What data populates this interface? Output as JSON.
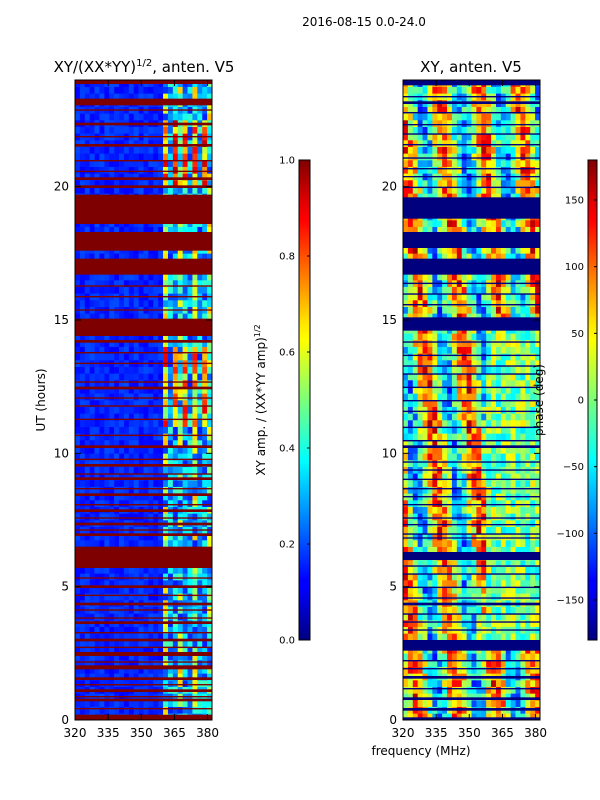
{
  "figure": {
    "title": "2016-08-15 0.0-24.0",
    "shared_xlabel": "frequency (MHz)"
  },
  "chart_data": [
    {
      "type": "heatmap",
      "title": "XY/(XX*YY)",
      "title_exponent": "1/2",
      "title_suffix": ", anten. V5",
      "xlabel": "",
      "ylabel": "UT (hours)",
      "xlim": [
        320,
        382
      ],
      "ylim": [
        0,
        24
      ],
      "xticks": [
        320,
        335,
        350,
        365,
        380
      ],
      "yticks": [
        0,
        5,
        10,
        15,
        20
      ],
      "colorbar": {
        "label": "XY amp. / (XX*YY amp)",
        "label_exponent": "1/2",
        "range": [
          0.0,
          1.0
        ],
        "ticks": [
          "0.0",
          "0.2",
          "0.4",
          "0.6",
          "0.8",
          "1.0"
        ],
        "colormap": "jet"
      },
      "saturated_bands_hours": [
        [
          0.0,
          0.2
        ],
        [
          0.7,
          0.8
        ],
        [
          1.05,
          1.15
        ],
        [
          1.5,
          1.6
        ],
        [
          1.9,
          2.05
        ],
        [
          2.4,
          2.55
        ],
        [
          2.95,
          3.05
        ],
        [
          3.6,
          3.7
        ],
        [
          4.3,
          4.4
        ],
        [
          4.95,
          5.05
        ],
        [
          5.7,
          6.5
        ],
        [
          6.9,
          7.0
        ],
        [
          7.3,
          7.4
        ],
        [
          7.8,
          7.9
        ],
        [
          8.4,
          8.5
        ],
        [
          9.0,
          9.1
        ],
        [
          9.5,
          9.6
        ],
        [
          10.2,
          10.3
        ],
        [
          12.4,
          12.5
        ],
        [
          14.15,
          14.25
        ],
        [
          14.4,
          15.05
        ],
        [
          15.35,
          15.4
        ],
        [
          16.7,
          17.3
        ],
        [
          17.6,
          18.3
        ],
        [
          18.6,
          19.5
        ],
        [
          19.5,
          19.7
        ],
        [
          19.95,
          20.05
        ],
        [
          20.25,
          20.35
        ],
        [
          21.5,
          21.6
        ],
        [
          22.3,
          22.4
        ],
        [
          23.05,
          23.3
        ],
        [
          23.85,
          24.0
        ]
      ],
      "narrow_lines_hours": [
        0.45,
        0.9,
        1.35,
        2.2,
        2.75,
        3.3,
        3.85,
        4.15,
        4.7,
        5.35,
        7.15,
        7.6,
        8.1,
        8.7,
        9.25,
        9.8,
        10.7,
        11.3,
        11.8,
        12.1,
        12.7,
        13.4,
        13.8,
        15.9,
        16.3,
        20.6,
        21.0,
        21.9,
        22.9
      ]
    },
    {
      "type": "heatmap",
      "title": "XY, anten. V5",
      "xlabel": "frequency (MHz)",
      "ylabel": "",
      "xlim": [
        320,
        382
      ],
      "ylim": [
        0,
        24
      ],
      "xticks": [
        320,
        335,
        350,
        365,
        380
      ],
      "yticks": [
        0,
        5,
        10,
        15,
        20
      ],
      "colorbar": {
        "label": "phase (deg)",
        "range": [
          -180,
          180
        ],
        "ticks": [
          "−150",
          "−100",
          "−50",
          "0",
          "50",
          "100",
          "150"
        ],
        "tick_values": [
          -150,
          -100,
          -50,
          0,
          50,
          100,
          150
        ],
        "colormap": "jet"
      },
      "flagged_bands_hours": [
        [
          0.0,
          0.1
        ],
        [
          0.35,
          0.45
        ],
        [
          0.75,
          0.85
        ],
        [
          1.55,
          1.65
        ],
        [
          2.6,
          3.0
        ],
        [
          4.3,
          4.4
        ],
        [
          6.0,
          6.3
        ],
        [
          6.8,
          6.85
        ],
        [
          7.3,
          7.35
        ],
        [
          8.05,
          8.1
        ],
        [
          9.0,
          9.05
        ],
        [
          10.2,
          10.3
        ],
        [
          14.6,
          15.1
        ],
        [
          16.7,
          17.3
        ],
        [
          17.7,
          18.3
        ],
        [
          18.8,
          19.5
        ],
        [
          19.5,
          19.6
        ],
        [
          20.35,
          20.4
        ],
        [
          22.3,
          22.35
        ],
        [
          23.1,
          23.2
        ],
        [
          23.8,
          24.0
        ]
      ],
      "dark_lines_hours": [
        1.2,
        1.95,
        2.25,
        3.4,
        3.7,
        4.0,
        4.6,
        5.0,
        5.5,
        5.8,
        7.0,
        7.6,
        8.4,
        8.7,
        9.4,
        9.7,
        10.5,
        11.0,
        11.6,
        12.0,
        12.5,
        13.0,
        13.3,
        13.7,
        14.2,
        15.6,
        16.0,
        16.4,
        20.0,
        20.7,
        21.1,
        21.6,
        22.0,
        22.8,
        23.4
      ]
    }
  ]
}
